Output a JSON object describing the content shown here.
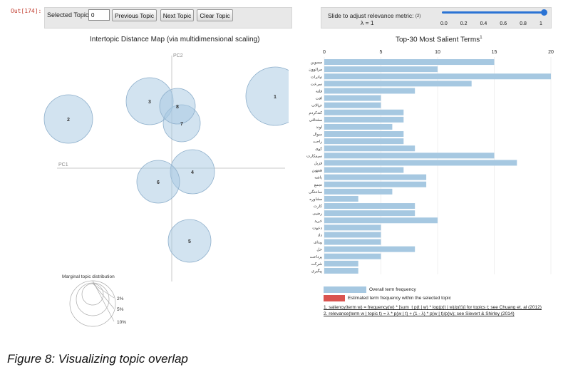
{
  "output_label": "Out[174]:",
  "toolbar": {
    "selected_topic_label": "Selected Topic:",
    "selected_topic_value": "0",
    "previous_label": "Previous Topic",
    "next_label": "Next Topic",
    "clear_label": "Clear Topic"
  },
  "relevance": {
    "label": "Slide to adjust relevance metric:",
    "footnote_ref": "(2)",
    "lambda_text": "λ = 1",
    "lambda_value": 1,
    "ticks": [
      "0.0",
      "0.2",
      "0.4",
      "0.6",
      "0.8",
      "1"
    ],
    "accent_color": "#2a73d4"
  },
  "left_panel": {
    "title": "Intertopic Distance Map (via multidimensional scaling)",
    "pc1_label": "PC1",
    "pc2_label": "PC2",
    "topics": [
      "1",
      "2",
      "3",
      "4",
      "5",
      "6",
      "7",
      "8"
    ],
    "marginal_title": "Marginal topic distribution",
    "marginal_levels": [
      "2%",
      "5%",
      "10%"
    ]
  },
  "chart_data": {
    "type": "bar",
    "orientation": "horizontal",
    "title": "Top-30 Most Salient Terms",
    "title_sup": "1",
    "x_ticks": [
      "0",
      "5",
      "10",
      "15",
      "20"
    ],
    "xlim": [
      0,
      20
    ],
    "categories": [
      "مسوین",
      "مرالوون",
      "تیاترات",
      "سرعت",
      "فلته",
      "افت",
      "خیالات",
      "کندکردم",
      "مشتاقی",
      "اوند",
      "سوال",
      "راحت",
      "کوی",
      "سیمکارت",
      "فزیل",
      "همهین",
      "باشه",
      "تجمع",
      "ساختگی",
      "مشاوره",
      "کارت",
      "رضیی",
      "خرید",
      "دعوت",
      "داد",
      "پیدای",
      "حل",
      "پرداخت",
      "شرکت",
      "پیگیری"
    ],
    "series": [
      {
        "name": "Overall term frequency",
        "color": "#a6c8e1",
        "values": [
          15,
          10,
          20,
          13,
          8,
          5,
          5,
          7,
          7,
          6,
          7,
          7,
          8,
          15,
          17,
          7,
          9,
          9,
          6,
          3,
          8,
          8,
          10,
          5,
          5,
          5,
          8,
          5,
          3,
          3
        ]
      }
    ],
    "legend": [
      {
        "label": "Overall term frequency",
        "color": "#a6c8e1"
      },
      {
        "label": "Estimated term frequency within the selected topic",
        "color": "#d9534f"
      }
    ],
    "footnotes": [
      "1. saliency(term w) = frequency(w) * [sum_t p(t | w) * log(p(t | w)/p(t))] for topics t; see Chuang et. al (2012)",
      "2. relevance(term w | topic t) = λ * p(w | t) + (1 - λ) * p(w | t)/p(w); see Sievert & Shirley (2014)"
    ]
  },
  "caption": "Figure 8: Visualizing topic overlap"
}
